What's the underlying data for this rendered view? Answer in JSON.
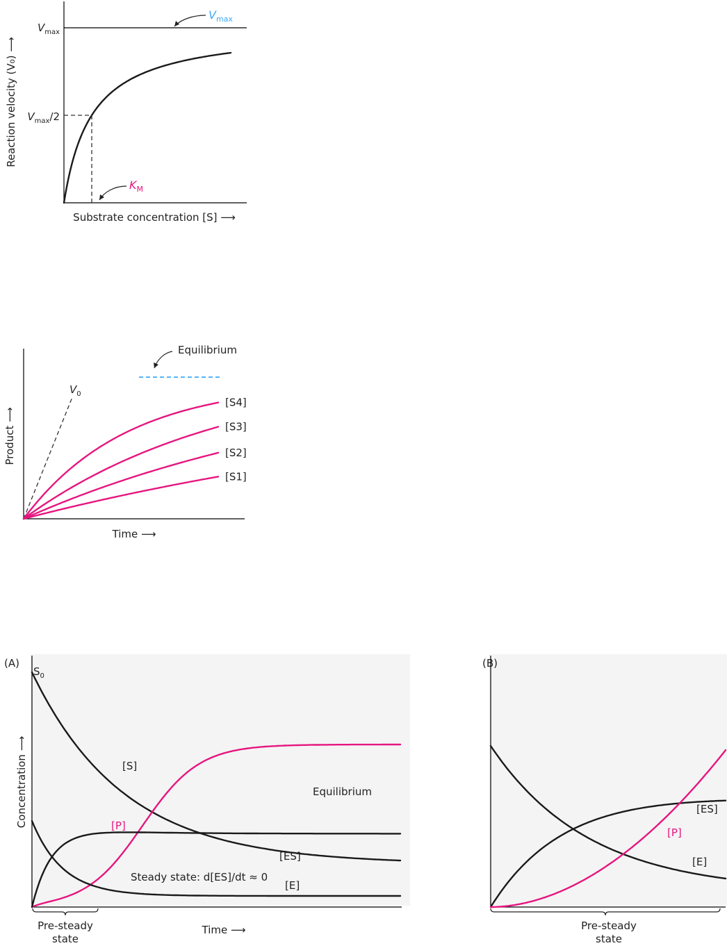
{
  "colors": {
    "magenta": "#e6157f",
    "blue": "#3fa9f5",
    "black": "#1a1a1a",
    "panel_bg": "#f4f4f4"
  },
  "chart_data": [
    {
      "type": "line",
      "chart": "michaelis-menten",
      "ylabel": "Reaction velocity (V₀) ⟶",
      "xlabel": "Substrate concentration [S] ⟶",
      "vmax": 1.0,
      "km": 1.0,
      "x_max": 6.0,
      "vmax_callout": "V_max",
      "vmax_tick": "V_max",
      "vmax_half_tick": "V_max/2",
      "km_callout": "K_M"
    },
    {
      "type": "line",
      "chart": "product-vs-time",
      "ylabel": "Product ⟶",
      "xlabel": "Time ⟶",
      "equilibrium_label": "Equilibrium",
      "v0_label": "V0",
      "equilibrium_level": 0.82,
      "series": [
        {
          "name": "[S4]",
          "plateau": 0.82,
          "k": 1.9
        },
        {
          "name": "[S3]",
          "plateau": 0.9,
          "k": 0.95
        },
        {
          "name": "[S2]",
          "plateau": 0.9,
          "k": 0.58
        },
        {
          "name": "[S1]",
          "plateau": 0.8,
          "k": 0.38
        }
      ]
    },
    {
      "type": "line",
      "chart": "progress-curves-A",
      "panel_label": "(A)",
      "ylabel": "Concentration ⟶",
      "xlabel": "Time ⟶",
      "s0_label": "S0",
      "equilibrium_label": "Equilibrium",
      "steady_state_label": "Steady state: d[ES]/dt ≈ 0",
      "pre_steady_label_line1": "Pre-steady",
      "pre_steady_label_line2": "state",
      "series": [
        {
          "name": "[S]"
        },
        {
          "name": "[P]"
        },
        {
          "name": "[ES]"
        },
        {
          "name": "[E]"
        }
      ]
    },
    {
      "type": "line",
      "chart": "progress-curves-B",
      "panel_label": "(B)",
      "pre_steady_label_line1": "Pre-steady",
      "pre_steady_label_line2": "state",
      "series": [
        {
          "name": "[ES]"
        },
        {
          "name": "[P]"
        },
        {
          "name": "[E]"
        }
      ]
    }
  ]
}
